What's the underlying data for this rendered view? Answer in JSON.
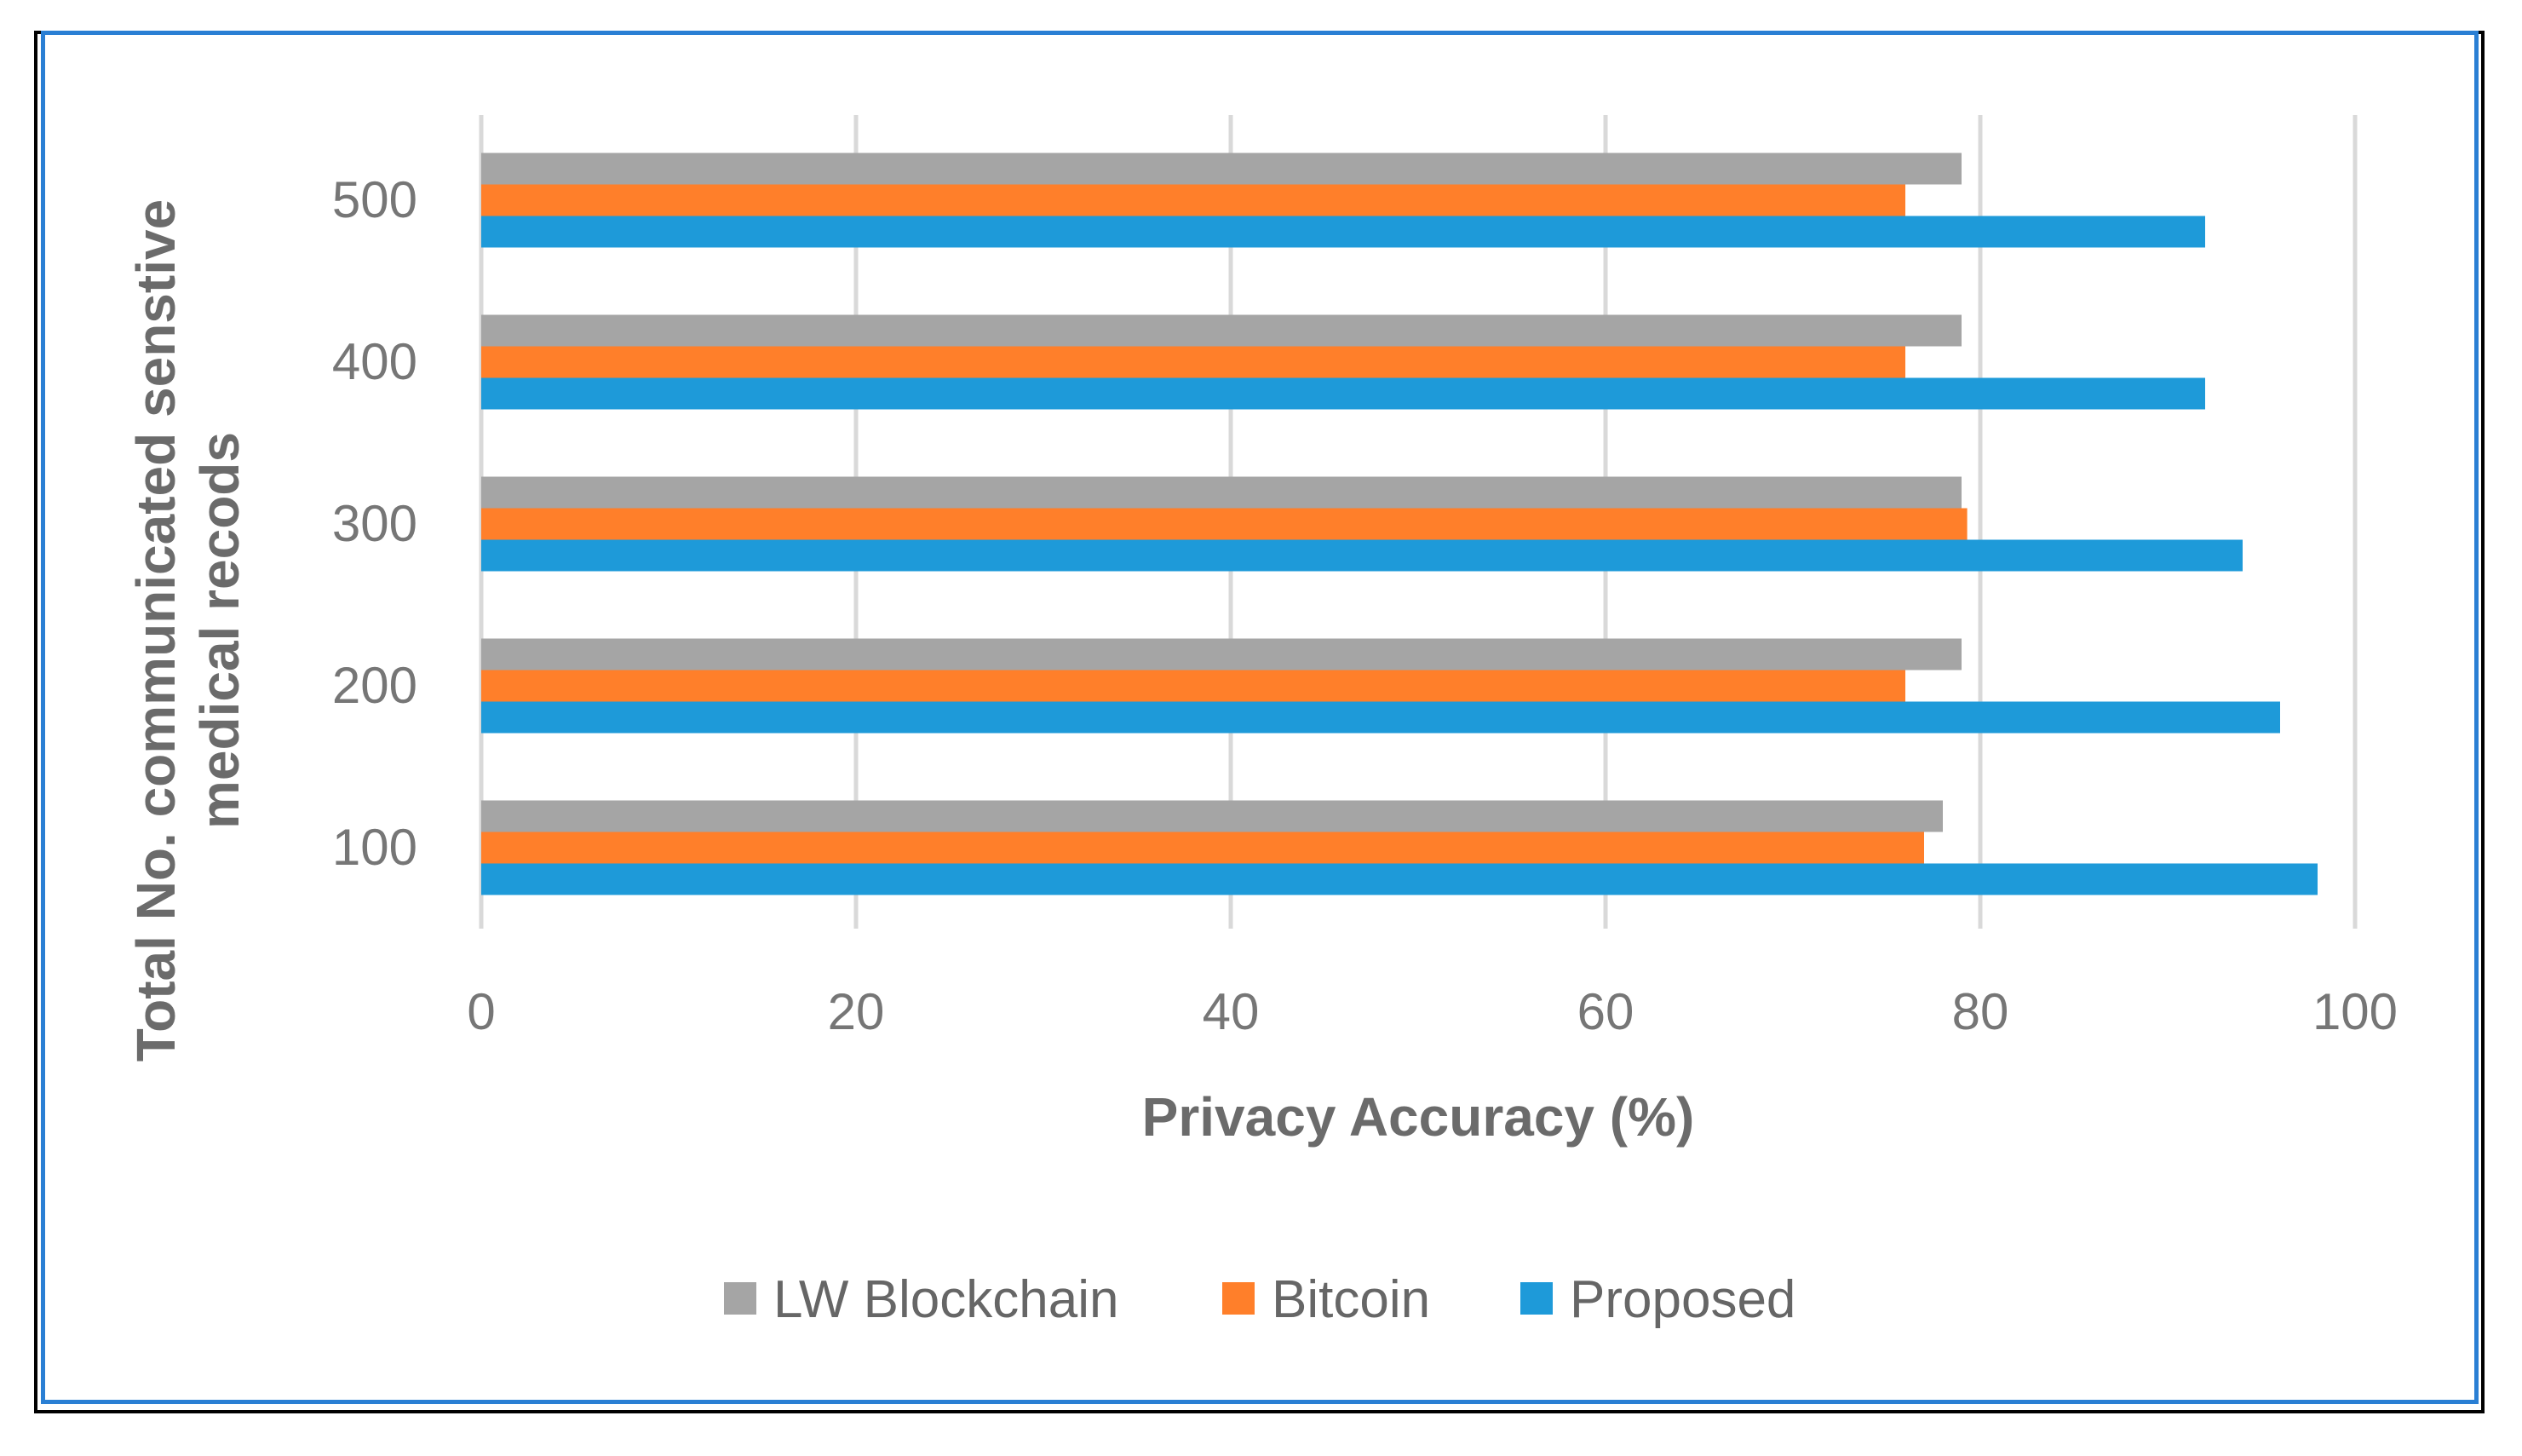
{
  "chart_data": {
    "type": "bar",
    "orientation": "horizontal",
    "title": "",
    "xlabel": "Privacy Accuracy (%)",
    "ylabel_lines": [
      "Total No. communicated senstive",
      "medical recods"
    ],
    "xlim": [
      0,
      100
    ],
    "xticks": [
      "0",
      "20",
      "40",
      "60",
      "80",
      "100"
    ],
    "categories": [
      "100",
      "200",
      "300",
      "400",
      "500"
    ],
    "grid": "vertical",
    "legend_position": "bottom-center",
    "series": [
      {
        "name": "LW Blockchain",
        "color": "#a5a5a5",
        "values": [
          78,
          79,
          79,
          79,
          79
        ]
      },
      {
        "name": "Bitcoin",
        "color": "#ff7f2a",
        "values": [
          77,
          76,
          79.3,
          76,
          76
        ]
      },
      {
        "name": "Proposed",
        "color": "#1e9ad9",
        "values": [
          98,
          96,
          94,
          92,
          92
        ]
      }
    ]
  }
}
